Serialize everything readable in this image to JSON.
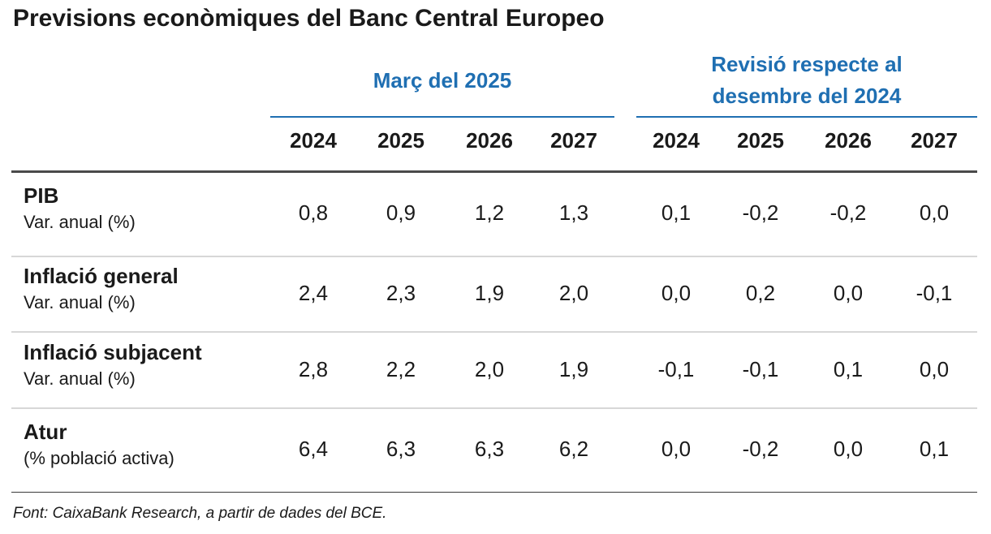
{
  "title": "Previsions econòmiques del Banc Central Europeo",
  "groups": [
    {
      "label_line1": "Març del 2025",
      "label_line2": ""
    },
    {
      "label_line1": "Revisió respecte al",
      "label_line2": "desembre del 2024"
    }
  ],
  "years": [
    "2024",
    "2025",
    "2026",
    "2027",
    "2024",
    "2025",
    "2026",
    "2027"
  ],
  "rows": [
    {
      "name": "PIB",
      "sub": "Var. anual (%)",
      "values": [
        "0,8",
        "0,9",
        "1,2",
        "1,3",
        "0,1",
        "-0,2",
        "-0,2",
        "0,0"
      ]
    },
    {
      "name": "Inflació general",
      "sub": "Var. anual (%)",
      "values": [
        "2,4",
        "2,3",
        "1,9",
        "2,0",
        "0,0",
        "0,2",
        "0,0",
        "-0,1"
      ]
    },
    {
      "name": "Inflació subjacent",
      "sub": "Var. anual (%)",
      "values": [
        "2,8",
        "2,2",
        "2,0",
        "1,9",
        "-0,1",
        "-0,1",
        "0,1",
        "0,0"
      ]
    },
    {
      "name": "Atur",
      "sub": "(% població activa)",
      "values": [
        "6,4",
        "6,3",
        "6,3",
        "6,2",
        "0,0",
        "-0,2",
        "0,0",
        "0,1"
      ]
    }
  ],
  "source": "Font: CaixaBank Research, a partir de dades del BCE.",
  "colors": {
    "accent": "#1f6fb2",
    "text": "#1a1a1a"
  }
}
